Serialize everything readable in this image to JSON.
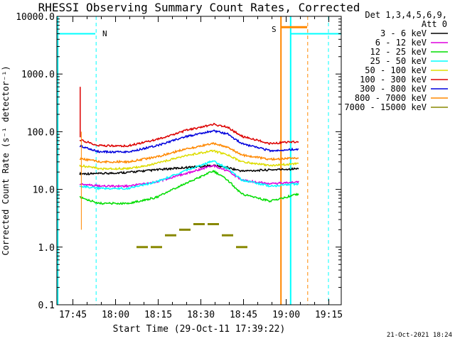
{
  "chart_data": {
    "type": "line",
    "title": "RHESSI Observing Summary Count Rates, Corrected",
    "xlabel": "Start Time (29-Oct-11 17:39:22)",
    "ylabel": "Corrected Count Rate (s⁻¹ detector⁻¹)",
    "y_scale": "log",
    "ylim": [
      0.1,
      10000
    ],
    "xlim_minutes_after_start": [
      0,
      100
    ],
    "y_ticks": [
      "10000.0",
      "1000.0",
      "100.0",
      "10.0",
      "1.0",
      "0.1"
    ],
    "x_ticks": [
      "17:45",
      "18:00",
      "18:15",
      "18:30",
      "18:45",
      "19:00",
      "19:15"
    ],
    "legend_title": [
      "Det 1,3,4,5,6,9,",
      "Att 0"
    ],
    "legend_position": "right",
    "timestamp": "21-Oct-2021 18:24",
    "series": [
      {
        "name": "3 - 6 keV",
        "color": "#000000",
        "x": [
          8,
          15,
          25,
          35,
          45,
          55,
          60,
          65,
          75,
          85
        ],
        "y": [
          18,
          18,
          19,
          21,
          23,
          25,
          23,
          20,
          21,
          22
        ]
      },
      {
        "name": "6 - 12 keV",
        "color": "#dd00dd",
        "x": [
          8,
          15,
          25,
          35,
          45,
          55,
          60,
          65,
          75,
          85
        ],
        "y": [
          12,
          11,
          11,
          13,
          18,
          25,
          20,
          14,
          12,
          13
        ]
      },
      {
        "name": "12 - 25 keV",
        "color": "#00dd00",
        "x": [
          8,
          15,
          25,
          35,
          45,
          55,
          60,
          65,
          75,
          85
        ],
        "y": [
          7,
          5.5,
          5.5,
          7,
          12,
          20,
          14,
          8,
          6,
          8
        ]
      },
      {
        "name": "25 - 50 keV",
        "color": "#00ffff",
        "x": [
          8,
          15,
          25,
          35,
          45,
          55,
          60,
          65,
          75,
          85
        ],
        "y": [
          11,
          10,
          10,
          13,
          20,
          30,
          22,
          14,
          11,
          12
        ]
      },
      {
        "name": "50 - 100 keV",
        "color": "#dddd00",
        "x": [
          8,
          15,
          25,
          35,
          45,
          55,
          60,
          65,
          75,
          85
        ],
        "y": [
          25,
          22,
          22,
          27,
          37,
          45,
          38,
          29,
          25,
          27
        ]
      },
      {
        "name": "100 - 300 keV",
        "color": "#dd0000",
        "x": [
          8,
          15,
          25,
          35,
          45,
          55,
          60,
          65,
          75,
          85
        ],
        "y": [
          70,
          55,
          55,
          70,
          100,
          130,
          115,
          80,
          60,
          65
        ]
      },
      {
        "name": "300 - 800 keV",
        "color": "#0000dd",
        "x": [
          8,
          15,
          25,
          35,
          45,
          55,
          60,
          65,
          75,
          85
        ],
        "y": [
          55,
          43,
          43,
          55,
          78,
          100,
          88,
          60,
          45,
          48
        ]
      },
      {
        "name": "800 - 7000 keV",
        "color": "#ff8800",
        "x": [
          8,
          15,
          25,
          35,
          45,
          55,
          60,
          65,
          75,
          85
        ],
        "y": [
          33,
          29,
          29,
          35,
          48,
          60,
          52,
          38,
          32,
          34
        ]
      },
      {
        "name": "7000 - 15000 keV",
        "color": "#888800",
        "x": [
          30,
          35,
          40,
          45,
          50,
          55,
          60,
          65
        ],
        "y": [
          1,
          1,
          1.6,
          2,
          2.5,
          2.5,
          1.6,
          1
        ]
      }
    ],
    "annotations": [
      {
        "label": "N",
        "color": "#00ffff"
      },
      {
        "label": "S",
        "color": "#ff8800"
      }
    ]
  }
}
